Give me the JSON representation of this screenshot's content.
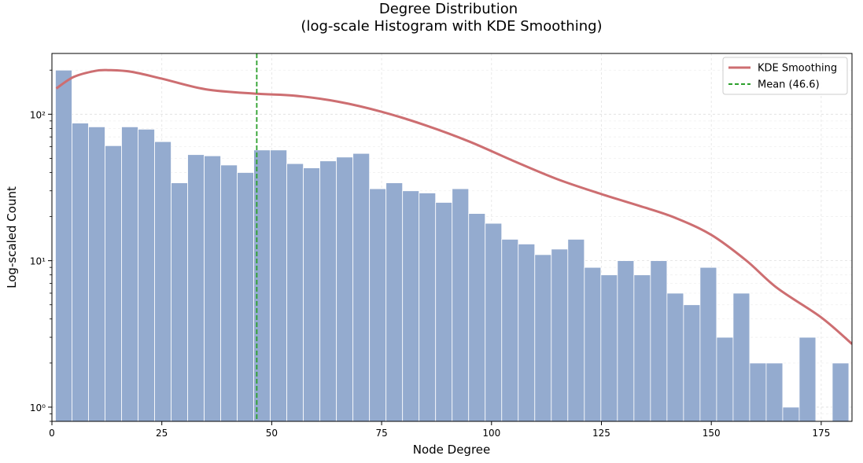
{
  "chart_data": {
    "type": "bar",
    "title": [
      "Degree Distribution",
      "(log-scale Histogram with KDE Smoothing)"
    ],
    "xlabel": "Node Degree",
    "ylabel": "Log-scaled Count",
    "xlim": [
      0,
      182
    ],
    "ylim": [
      0.8,
      260
    ],
    "yscale": "log",
    "grid": true,
    "legend_position": "top-right",
    "xticks": [
      0,
      25,
      50,
      75,
      100,
      125,
      150,
      175
    ],
    "xtick_labels": [
      "0",
      "25",
      "50",
      "75",
      "100",
      "125",
      "150",
      "175"
    ],
    "yticks": [
      1,
      10,
      100
    ],
    "ytick_labels": [
      "10⁰",
      "10¹",
      "10²"
    ],
    "bins": {
      "start": 0.8,
      "width": 3.76,
      "counts": [
        200,
        87,
        82,
        61,
        82,
        79,
        65,
        34,
        53,
        52,
        45,
        40,
        57,
        57,
        46,
        43,
        48,
        51,
        54,
        31,
        34,
        30,
        29,
        25,
        31,
        21,
        18,
        14,
        13,
        11,
        12,
        14,
        9,
        8,
        10,
        8,
        10,
        6,
        5,
        9,
        3,
        6,
        2,
        2,
        1,
        3,
        0,
        2
      ]
    },
    "series": [
      {
        "name": "KDE Smoothing",
        "x": [
          1,
          5,
          10,
          13,
          18,
          25,
          35,
          46.6,
          55,
          65,
          75,
          85,
          95,
          105,
          115,
          125,
          135,
          142,
          150,
          158,
          165,
          175,
          182
        ],
        "values": [
          150,
          180,
          198,
          200,
          195,
          175,
          148,
          138,
          134,
          122,
          104,
          84,
          65,
          48,
          36,
          28.5,
          23,
          19.5,
          15,
          10,
          6.5,
          4.1,
          2.7
        ]
      }
    ],
    "annotations": [
      {
        "name": "Mean (46.6)",
        "type": "vline",
        "x": 46.6
      }
    ],
    "colors": {
      "bars": "#94abcf",
      "bar_edge": "#ffffff",
      "kde": "#cd6e71",
      "mean": "#2ca02c"
    }
  }
}
